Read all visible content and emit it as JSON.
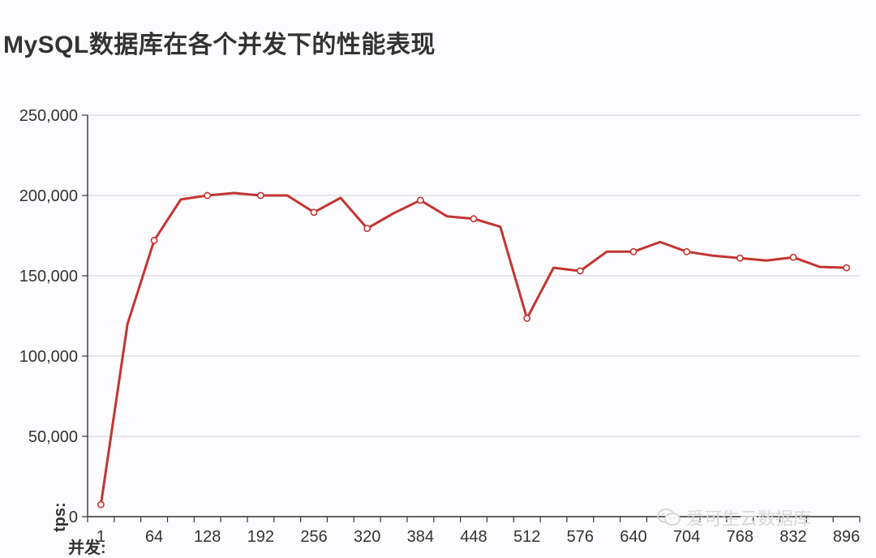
{
  "title": "MySQL数据库在各个并发下的性能表现",
  "watermark": {
    "icon": "wechat-icon",
    "text": "爱可生云数据库"
  },
  "chart_data": {
    "type": "line",
    "title": "MySQL数据库在各个并发下的性能表现",
    "xlabel": "并发:",
    "ylabel": "tps:",
    "xlim": [
      0,
      928
    ],
    "ylim": [
      0,
      250000
    ],
    "x_ticks": [
      1,
      64,
      128,
      192,
      256,
      320,
      384,
      448,
      512,
      576,
      640,
      704,
      768,
      832,
      896
    ],
    "y_ticks": [
      0,
      50000,
      100000,
      150000,
      200000,
      250000
    ],
    "y_tick_labels": [
      "0",
      "50,000",
      "100,000",
      "150,000",
      "200,000",
      "250,000"
    ],
    "grid": "horizontal",
    "line_color": "#c23531",
    "series": [
      {
        "points": [
          {
            "x": 16,
            "y": 7500,
            "marker": true
          },
          {
            "x": 48,
            "y": 120000,
            "marker": false
          },
          {
            "x": 80,
            "y": 172000,
            "marker": true
          },
          {
            "x": 112,
            "y": 197500,
            "marker": false
          },
          {
            "x": 144,
            "y": 200000,
            "marker": true
          },
          {
            "x": 176,
            "y": 201500,
            "marker": false
          },
          {
            "x": 208,
            "y": 200000,
            "marker": true
          },
          {
            "x": 240,
            "y": 200000,
            "marker": false
          },
          {
            "x": 272,
            "y": 189500,
            "marker": true
          },
          {
            "x": 304,
            "y": 198500,
            "marker": false
          },
          {
            "x": 336,
            "y": 179500,
            "marker": true
          },
          {
            "x": 368,
            "y": 189000,
            "marker": false
          },
          {
            "x": 400,
            "y": 197000,
            "marker": true
          },
          {
            "x": 432,
            "y": 187000,
            "marker": false
          },
          {
            "x": 464,
            "y": 185500,
            "marker": true
          },
          {
            "x": 496,
            "y": 180500,
            "marker": false
          },
          {
            "x": 528,
            "y": 123500,
            "marker": true
          },
          {
            "x": 560,
            "y": 155000,
            "marker": false
          },
          {
            "x": 592,
            "y": 153000,
            "marker": true
          },
          {
            "x": 624,
            "y": 165000,
            "marker": false
          },
          {
            "x": 656,
            "y": 165000,
            "marker": true
          },
          {
            "x": 688,
            "y": 171000,
            "marker": false
          },
          {
            "x": 720,
            "y": 165000,
            "marker": true
          },
          {
            "x": 752,
            "y": 162500,
            "marker": false
          },
          {
            "x": 784,
            "y": 161000,
            "marker": true
          },
          {
            "x": 816,
            "y": 159500,
            "marker": false
          },
          {
            "x": 848,
            "y": 161500,
            "marker": true
          },
          {
            "x": 880,
            "y": 155500,
            "marker": false
          },
          {
            "x": 912,
            "y": 155000,
            "marker": true
          }
        ]
      }
    ]
  }
}
